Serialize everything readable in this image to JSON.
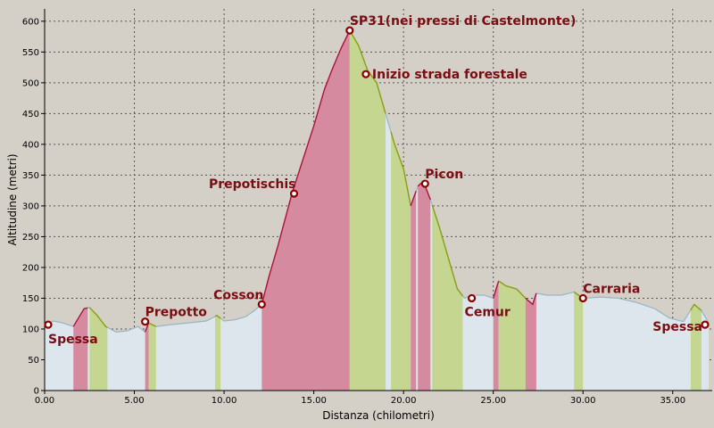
{
  "chart_data": {
    "type": "area",
    "xlabel": "Distanza (chilometri)",
    "ylabel": "Altitudine (metri)",
    "xlim": [
      0,
      37.2
    ],
    "ylim": [
      0,
      620
    ],
    "x_ticks": [
      "0.00",
      "5.00",
      "10.00",
      "15.00",
      "20.00",
      "25.00",
      "30.00",
      "35.00"
    ],
    "x_tick_values": [
      0,
      5,
      10,
      15,
      20,
      25,
      30,
      35
    ],
    "y_ticks": [
      "0",
      "50",
      "100",
      "150",
      "200",
      "250",
      "300",
      "350",
      "400",
      "450",
      "500",
      "550",
      "600"
    ],
    "y_tick_values": [
      0,
      50,
      100,
      150,
      200,
      250,
      300,
      350,
      400,
      450,
      500,
      550,
      600
    ],
    "grid": true,
    "colors": {
      "background": "#d4d0c8",
      "profile_fill": "#dde6ec",
      "profile_line": "#9ab5c0",
      "climb_fill": "#d68aa0",
      "climb_line": "#b0103a",
      "descent_fill": "#c4d690",
      "descent_line": "#8aa010",
      "marker": "#8b0000",
      "label": "#7a0d12",
      "axis_text": "#b06000"
    },
    "profile": [
      [
        0,
        107
      ],
      [
        0.5,
        113
      ],
      [
        1,
        110
      ],
      [
        1.6,
        104
      ],
      [
        2.2,
        133
      ],
      [
        2.5,
        135
      ],
      [
        2.9,
        123
      ],
      [
        3.4,
        104
      ],
      [
        4,
        95
      ],
      [
        4.6,
        97
      ],
      [
        5.2,
        104
      ],
      [
        5.6,
        95
      ],
      [
        5.8,
        110
      ],
      [
        6.2,
        104
      ],
      [
        7,
        107
      ],
      [
        8,
        110
      ],
      [
        9,
        113
      ],
      [
        9.6,
        122
      ],
      [
        10,
        113
      ],
      [
        10.6,
        115
      ],
      [
        11.2,
        120
      ],
      [
        11.6,
        128
      ],
      [
        12.1,
        140
      ],
      [
        12.5,
        185
      ],
      [
        13,
        235
      ],
      [
        13.8,
        322
      ],
      [
        14.5,
        385
      ],
      [
        15,
        430
      ],
      [
        15.6,
        490
      ],
      [
        16,
        520
      ],
      [
        16.5,
        555
      ],
      [
        17,
        585
      ],
      [
        17.5,
        560
      ],
      [
        18,
        520
      ],
      [
        18.5,
        500
      ],
      [
        19,
        450
      ],
      [
        19.5,
        400
      ],
      [
        20,
        360
      ],
      [
        20.4,
        300
      ],
      [
        20.8,
        332
      ],
      [
        21.1,
        340
      ],
      [
        21.5,
        310
      ],
      [
        22,
        265
      ],
      [
        22.5,
        215
      ],
      [
        23,
        165
      ],
      [
        23.4,
        150
      ],
      [
        23.8,
        155
      ],
      [
        24.5,
        155
      ],
      [
        25,
        150
      ],
      [
        25.3,
        178
      ],
      [
        25.7,
        170
      ],
      [
        26.3,
        165
      ],
      [
        26.8,
        150
      ],
      [
        27.2,
        140
      ],
      [
        27.4,
        158
      ],
      [
        28,
        155
      ],
      [
        28.8,
        155
      ],
      [
        29.5,
        160
      ],
      [
        30,
        150
      ],
      [
        31,
        152
      ],
      [
        32,
        150
      ],
      [
        33,
        143
      ],
      [
        34,
        133
      ],
      [
        34.8,
        118
      ],
      [
        35.6,
        112
      ],
      [
        36.2,
        140
      ],
      [
        36.6,
        130
      ],
      [
        37,
        110
      ]
    ],
    "segments": [
      {
        "from": 1.6,
        "to": 2.4,
        "kind": "climb"
      },
      {
        "from": 2.5,
        "to": 3.5,
        "kind": "descent"
      },
      {
        "from": 5.6,
        "to": 5.8,
        "kind": "climb"
      },
      {
        "from": 5.8,
        "to": 6.2,
        "kind": "descent"
      },
      {
        "from": 9.5,
        "to": 9.8,
        "kind": "descent"
      },
      {
        "from": 12.1,
        "to": 17.0,
        "kind": "climb"
      },
      {
        "from": 17.0,
        "to": 19.0,
        "kind": "descent"
      },
      {
        "from": 19.3,
        "to": 20.4,
        "kind": "descent"
      },
      {
        "from": 20.4,
        "to": 20.7,
        "kind": "climb"
      },
      {
        "from": 20.8,
        "to": 21.5,
        "kind": "climb"
      },
      {
        "from": 21.6,
        "to": 23.3,
        "kind": "descent"
      },
      {
        "from": 25.0,
        "to": 25.3,
        "kind": "climb"
      },
      {
        "from": 25.3,
        "to": 26.8,
        "kind": "descent"
      },
      {
        "from": 26.8,
        "to": 27.4,
        "kind": "climb"
      },
      {
        "from": 29.5,
        "to": 30.0,
        "kind": "descent"
      },
      {
        "from": 36.0,
        "to": 36.6,
        "kind": "descent"
      }
    ],
    "waypoints": [
      {
        "name": "Spessa",
        "x": 0.0,
        "y": 107,
        "label_side": "below-right"
      },
      {
        "name": "Prepotto",
        "x": 5.6,
        "y": 112,
        "label_side": "above-right"
      },
      {
        "name": "Cosson",
        "x": 12.1,
        "y": 140,
        "label_side": "above-left"
      },
      {
        "name": "Prepotischis",
        "x": 13.9,
        "y": 320,
        "label_side": "above-left"
      },
      {
        "name": "SP31(nei pressi di Castelmonte)",
        "x": 17.0,
        "y": 585,
        "label_side": "above-right"
      },
      {
        "name": "Inizio strada forestale",
        "x": 17.9,
        "y": 514,
        "label_side": "right"
      },
      {
        "name": "Picon",
        "x": 21.2,
        "y": 336,
        "label_side": "above-right"
      },
      {
        "name": "Cemur",
        "x": 23.8,
        "y": 150,
        "label_side": "below-left"
      },
      {
        "name": "Carraria",
        "x": 30.0,
        "y": 150,
        "label_side": "above-right"
      },
      {
        "name": "Spessa",
        "x": 36.9,
        "y": 107,
        "label_side": "left"
      }
    ]
  }
}
